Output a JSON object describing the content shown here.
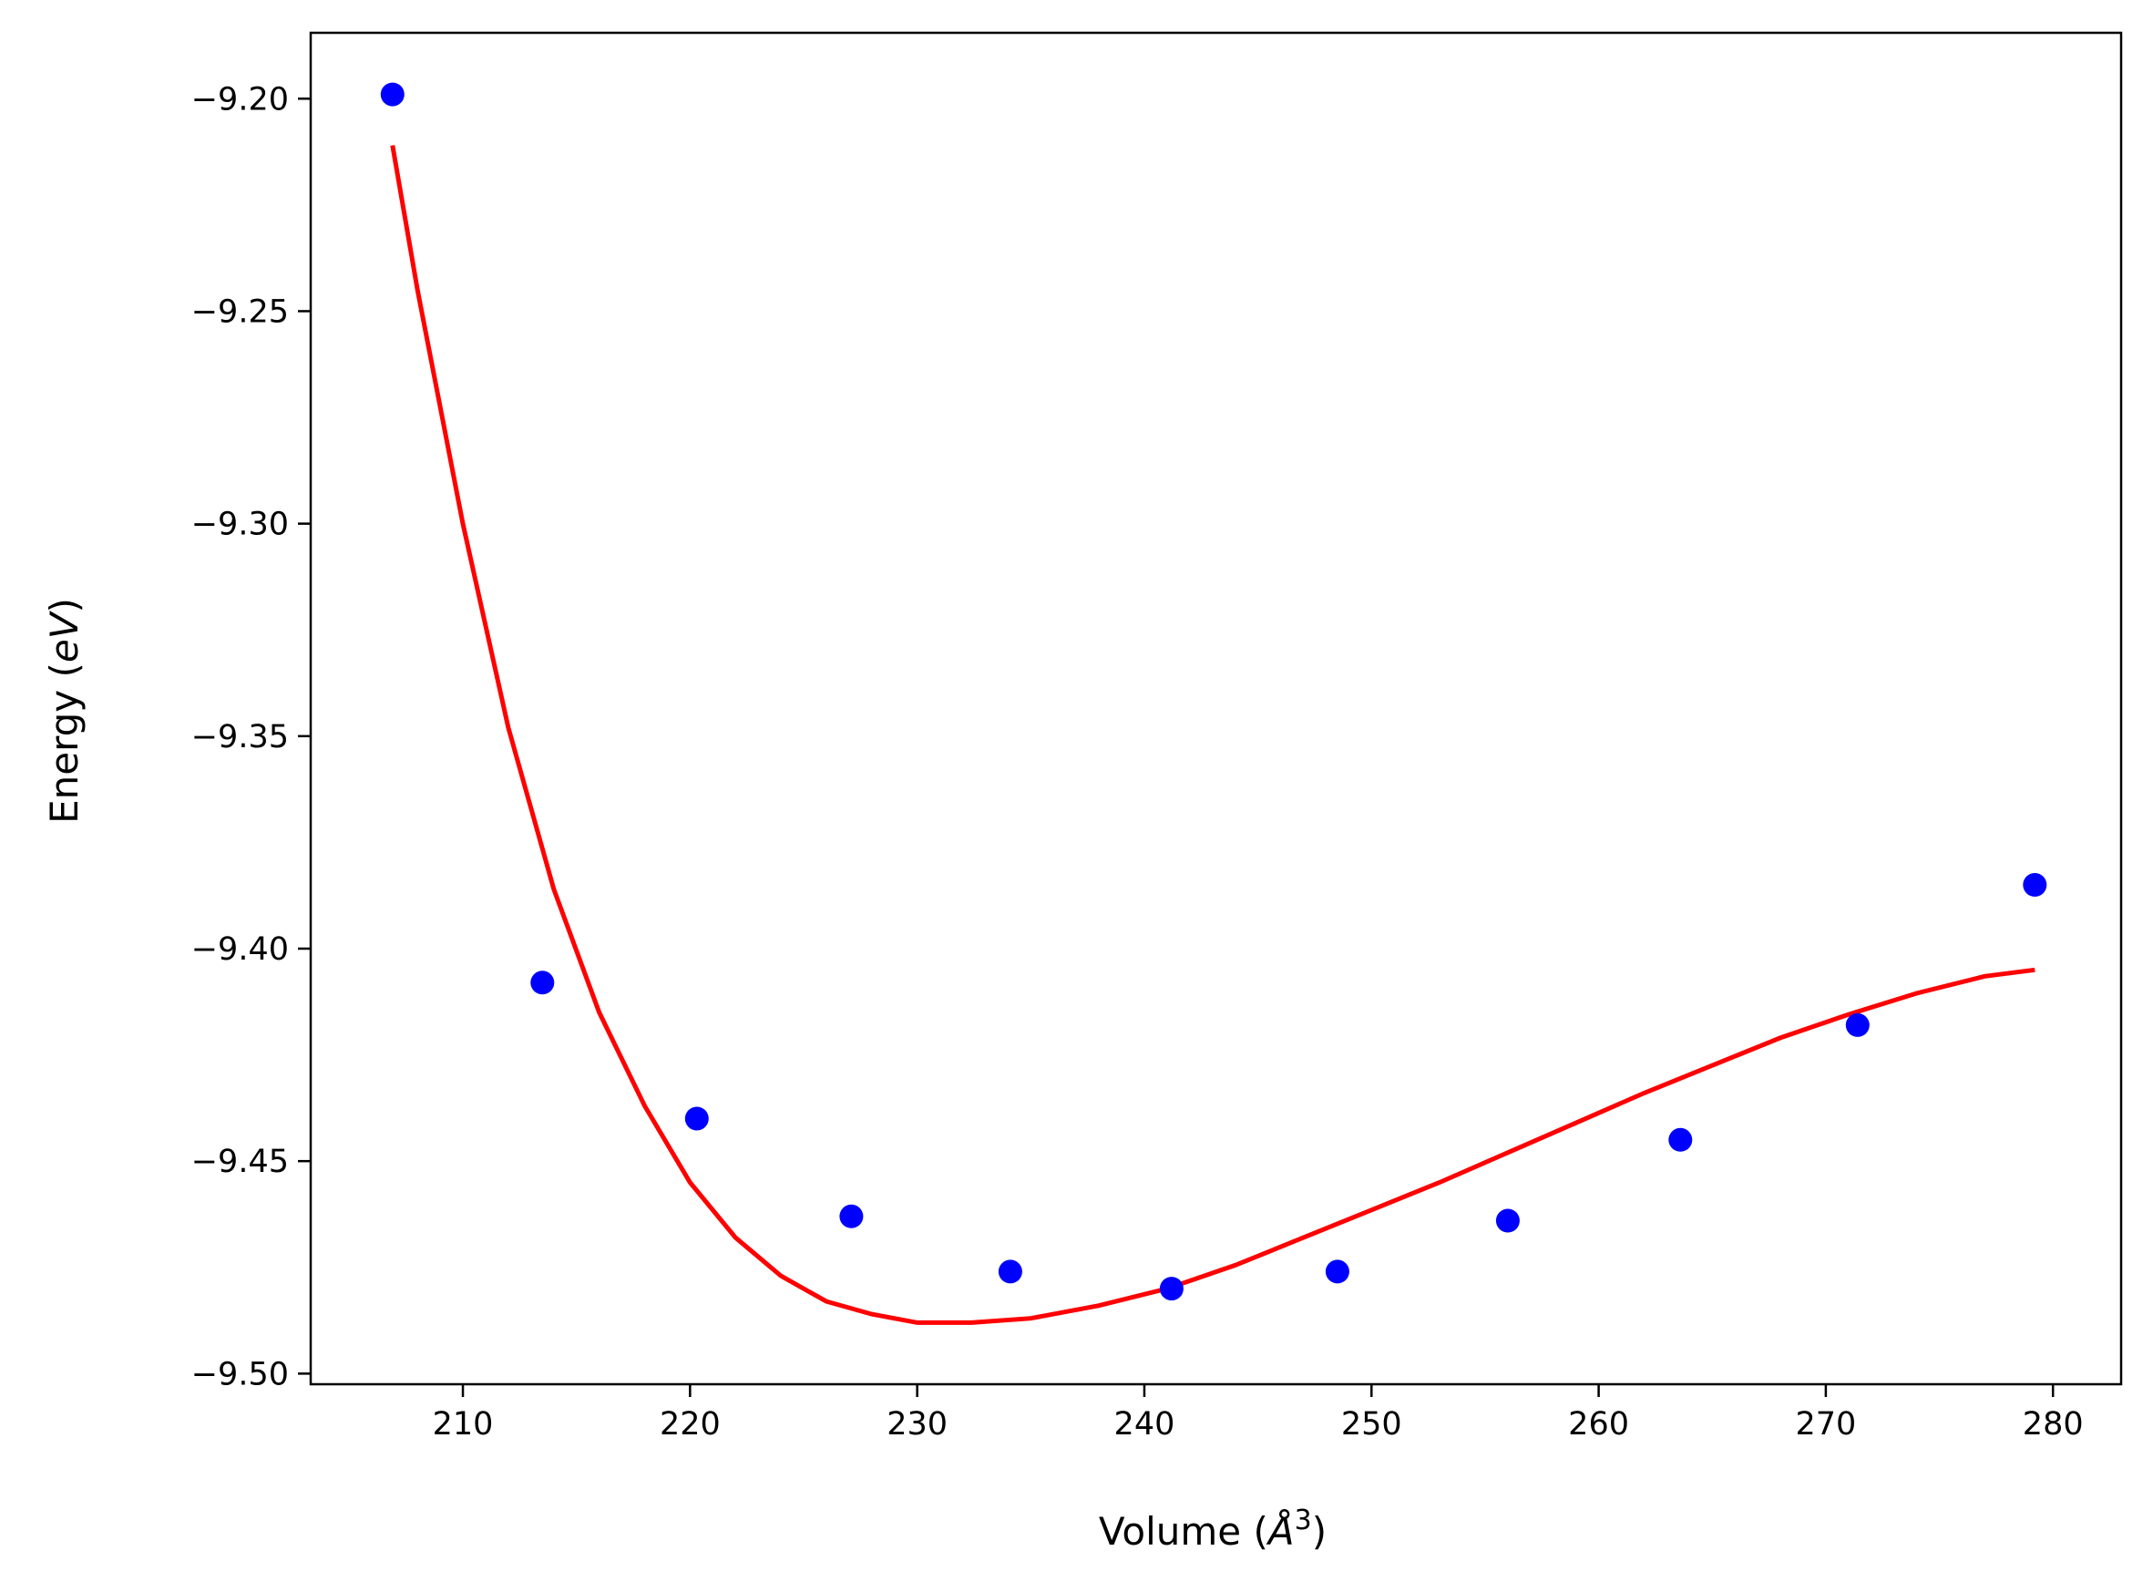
{
  "chart_data": {
    "type": "scatter",
    "xlabel": "Volume (Å³)",
    "xlabel_parts": {
      "main": "Volume (",
      "symbol": "Å",
      "sup": "3",
      "close": ")"
    },
    "ylabel": "Energy (eV)",
    "ylabel_parts": {
      "main": "Energy (",
      "symbol": "eV",
      "close": ")"
    },
    "xlim": [
      203.3,
      283.0
    ],
    "ylim": [
      -9.5025,
      -9.1845
    ],
    "xticks": [
      210,
      220,
      230,
      240,
      250,
      260,
      270,
      280
    ],
    "xtick_labels": [
      "210",
      "220",
      "230",
      "240",
      "250",
      "260",
      "270",
      "280"
    ],
    "yticks": [
      -9.2,
      -9.25,
      -9.3,
      -9.35,
      -9.4,
      -9.45,
      -9.5
    ],
    "ytick_labels": [
      "−9.20",
      "−9.25",
      "−9.30",
      "−9.35",
      "−9.40",
      "−9.45",
      "−9.50"
    ],
    "grid": false,
    "series": [
      {
        "kind": "scatter",
        "color": "#0000ff",
        "x": [
          206.9,
          213.5,
          220.3,
          227.1,
          234.1,
          241.2,
          248.5,
          256.0,
          263.6,
          271.4,
          279.2
        ],
        "y": [
          -9.199,
          -9.408,
          -9.44,
          -9.463,
          -9.476,
          -9.48,
          -9.476,
          -9.464,
          -9.445,
          -9.418,
          -9.385
        ]
      },
      {
        "kind": "line",
        "color": "#ff0000",
        "x": [
          206.9,
          208.0,
          210.0,
          212.0,
          214.0,
          216.0,
          218.0,
          220.0,
          222.0,
          224.0,
          226.0,
          228.0,
          230.0,
          232.4,
          235.0,
          238.0,
          241.0,
          244.0,
          247.0,
          250.0,
          253.0,
          256.0,
          259.0,
          262.0,
          265.0,
          268.0,
          271.0,
          274.0,
          277.0,
          279.2
        ],
        "y": [
          -9.211,
          -9.245,
          -9.3,
          -9.348,
          -9.386,
          -9.415,
          -9.437,
          -9.455,
          -9.468,
          -9.477,
          -9.483,
          -9.486,
          -9.488,
          -9.488,
          -9.487,
          -9.484,
          -9.48,
          -9.4745,
          -9.468,
          -9.4615,
          -9.455,
          -9.448,
          -9.441,
          -9.434,
          -9.4275,
          -9.421,
          -9.4155,
          -9.4105,
          -9.4065,
          -9.405
        ]
      }
    ]
  }
}
